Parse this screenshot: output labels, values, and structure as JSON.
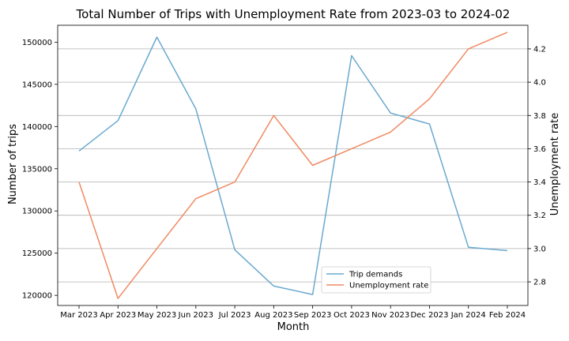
{
  "chart_data": {
    "type": "line",
    "title": "Total Number of Trips with Unemployment Rate from 2023-03 to 2024-02",
    "xlabel": "Month",
    "ylabel_left": "Number of trips",
    "ylabel_right": "Unemployment rate",
    "categories": [
      "Mar 2023",
      "Apr 2023",
      "May 2023",
      "Jun 2023",
      "Jul 2023",
      "Aug 2023",
      "Sep 2023",
      "Oct 2023",
      "Nov 2023",
      "Dec 2023",
      "Jan 2024",
      "Feb 2024"
    ],
    "left_axis": {
      "ylim": [
        118800,
        152000
      ],
      "ticks": [
        120000,
        125000,
        130000,
        135000,
        140000,
        145000,
        150000
      ]
    },
    "right_axis": {
      "ylim": [
        2.658,
        4.342
      ],
      "ticks": [
        2.8,
        3.0,
        3.2,
        3.4,
        3.6,
        3.8,
        4.0,
        4.2
      ]
    },
    "grid": "horizontal lines at right-axis ticks",
    "legend_position": "lower center-right",
    "series": [
      {
        "name": "Trip demands",
        "axis": "left",
        "color": "#6aa9cf",
        "values": [
          137100,
          140700,
          150600,
          142100,
          125400,
          121100,
          120100,
          148400,
          141600,
          140300,
          125700,
          125300
        ]
      },
      {
        "name": "Unemployment rate",
        "axis": "right",
        "color": "#ef8a62",
        "values": [
          3.4,
          2.7,
          3.0,
          3.3,
          3.4,
          3.8,
          3.5,
          3.6,
          3.7,
          3.9,
          4.2,
          4.3
        ]
      }
    ]
  }
}
